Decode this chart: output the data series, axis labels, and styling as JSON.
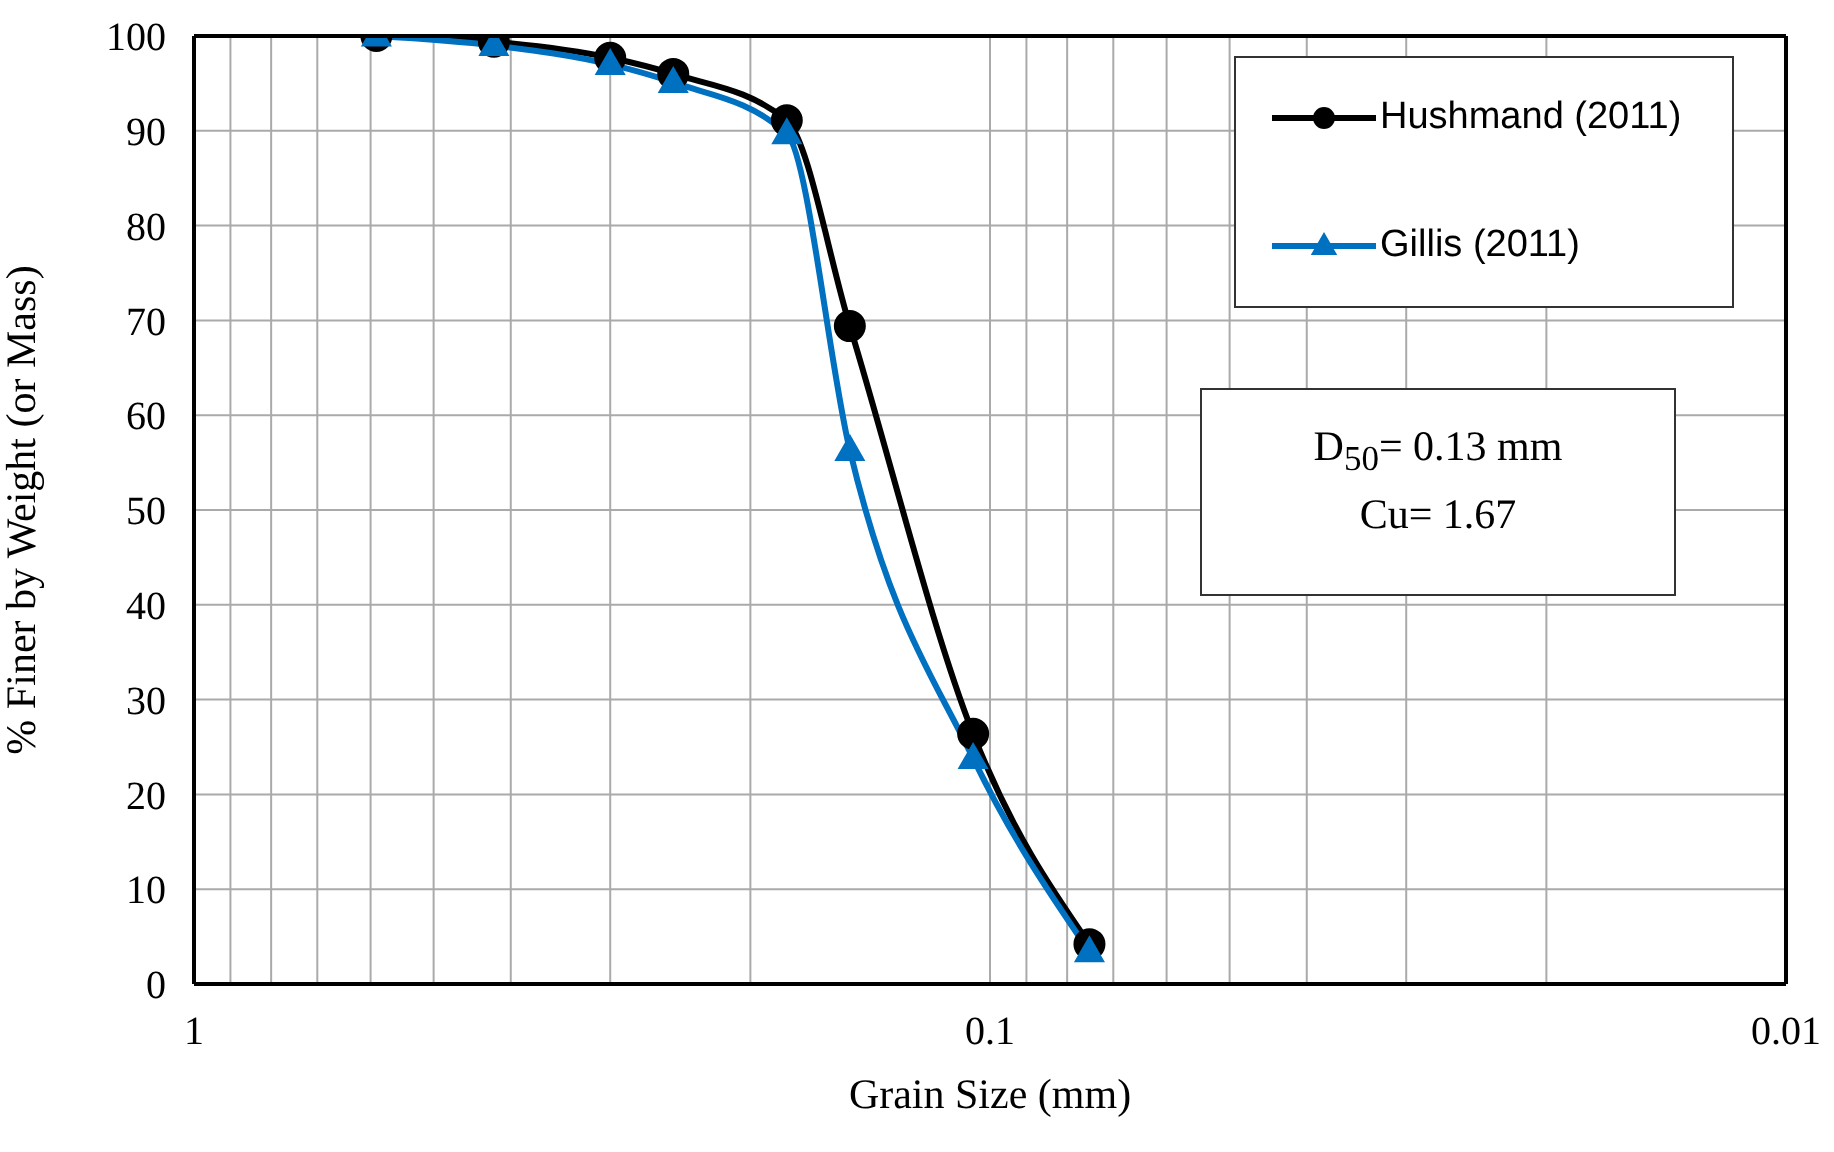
{
  "chart_data": {
    "type": "line",
    "xlabel": "Grain Size (mm)",
    "ylabel": "% Finer by Weight (or Mass)",
    "series": [
      {
        "name": "Hushmand (2011)",
        "color": "#000000",
        "marker": "circle",
        "x": [
          0.59,
          0.42,
          0.3,
          0.25,
          0.18,
          0.15,
          0.105,
          0.075
        ],
        "values": [
          100,
          99.4,
          97.7,
          96,
          91.1,
          69.4,
          26.4,
          4.2
        ]
      },
      {
        "name": "Gillis (2011)",
        "color": "#0070c0",
        "marker": "triangle",
        "x": [
          0.59,
          0.42,
          0.3,
          0.25,
          0.18,
          0.15,
          0.105,
          0.075
        ],
        "values": [
          100,
          99,
          97,
          95.1,
          89.7,
          56.3,
          23.8,
          3.4
        ]
      }
    ],
    "log": "x",
    "xlim": [
      1,
      0.01
    ],
    "xticks": [
      1,
      {
        "value": 0.9,
        "label": null
      },
      {
        "value": 0.8,
        "label": null
      },
      {
        "value": 0.7,
        "label": null
      },
      {
        "value": 0.6,
        "label": null
      },
      {
        "value": 0.5,
        "label": null
      },
      {
        "value": 0.4,
        "label": null
      },
      {
        "value": 0.3,
        "label": null
      },
      {
        "value": 0.2,
        "label": null
      },
      0.1,
      {
        "value": 0.09,
        "label": null
      },
      {
        "value": 0.08,
        "label": null
      },
      {
        "value": 0.07,
        "label": null
      },
      {
        "value": 0.06,
        "label": null
      },
      {
        "value": 0.05,
        "label": null
      },
      {
        "value": 0.04,
        "label": null
      },
      {
        "value": 0.03,
        "label": null
      },
      {
        "value": 0.02,
        "label": null
      },
      0.01
    ],
    "ylim": [
      0,
      100
    ],
    "yticks": [
      0,
      10,
      20,
      30,
      40,
      50,
      60,
      70,
      80,
      90,
      100
    ],
    "grid": true,
    "legend": "top right",
    "line_style": "solid",
    "annotations": [
      "D$_{50}$= 0.13 mm",
      "Cu= 1.67"
    ]
  }
}
